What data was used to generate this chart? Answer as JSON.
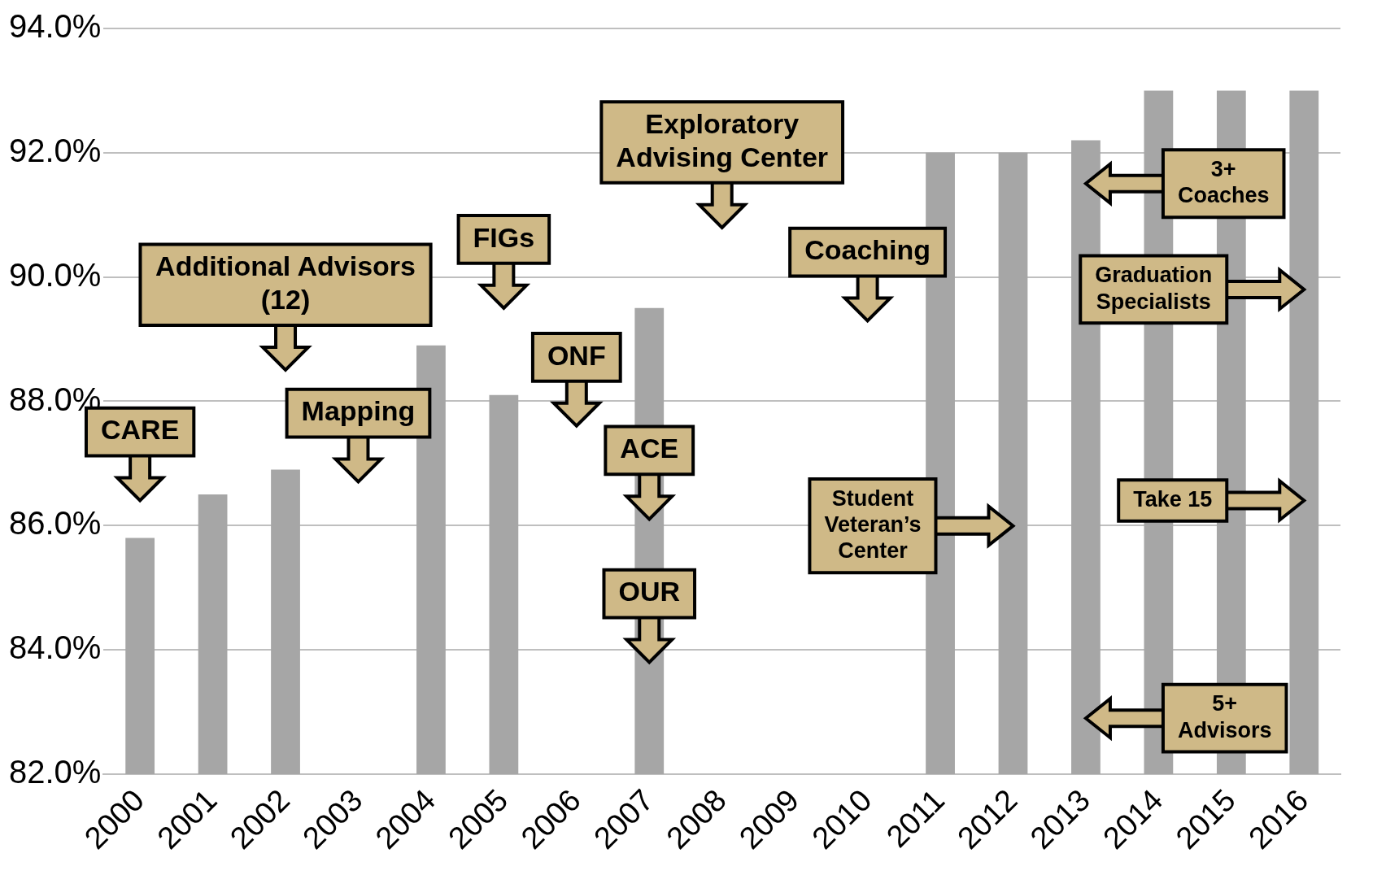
{
  "chart_data": {
    "type": "bar",
    "categories": [
      "2000",
      "2001",
      "2002",
      "2003",
      "2004",
      "2005",
      "2006",
      "2007",
      "2008",
      "2009",
      "2010",
      "2011",
      "2012",
      "2013",
      "2014",
      "2015",
      "2016"
    ],
    "values": [
      85.8,
      86.5,
      86.9,
      null,
      88.9,
      88.1,
      null,
      89.5,
      null,
      null,
      null,
      92.0,
      92.0,
      92.2,
      93.0,
      93.0,
      93.0
    ],
    "color": "#a6a6a6",
    "ylim": [
      82,
      94
    ],
    "yticks": [
      {
        "value": 82,
        "label": "82.0%"
      },
      {
        "value": 84,
        "label": "84.0%"
      },
      {
        "value": 86,
        "label": "86.0%"
      },
      {
        "value": 88,
        "label": "88.0%"
      },
      {
        "value": 90,
        "label": "90.0%"
      },
      {
        "value": 92,
        "label": "92.0%"
      },
      {
        "value": 94,
        "label": "94.0%"
      }
    ],
    "grid": "y",
    "legend": false,
    "annotations": [
      "CARE",
      "Additional Advisors (12)",
      "Mapping",
      "FIGs",
      "ONF",
      "ACE",
      "OUR",
      "Exploratory Advising Center",
      "Coaching",
      "Student Veteran’s Center",
      "3+ Coaches",
      "Graduation Specialists",
      "Take 15",
      "5+ Advisors"
    ]
  }
}
